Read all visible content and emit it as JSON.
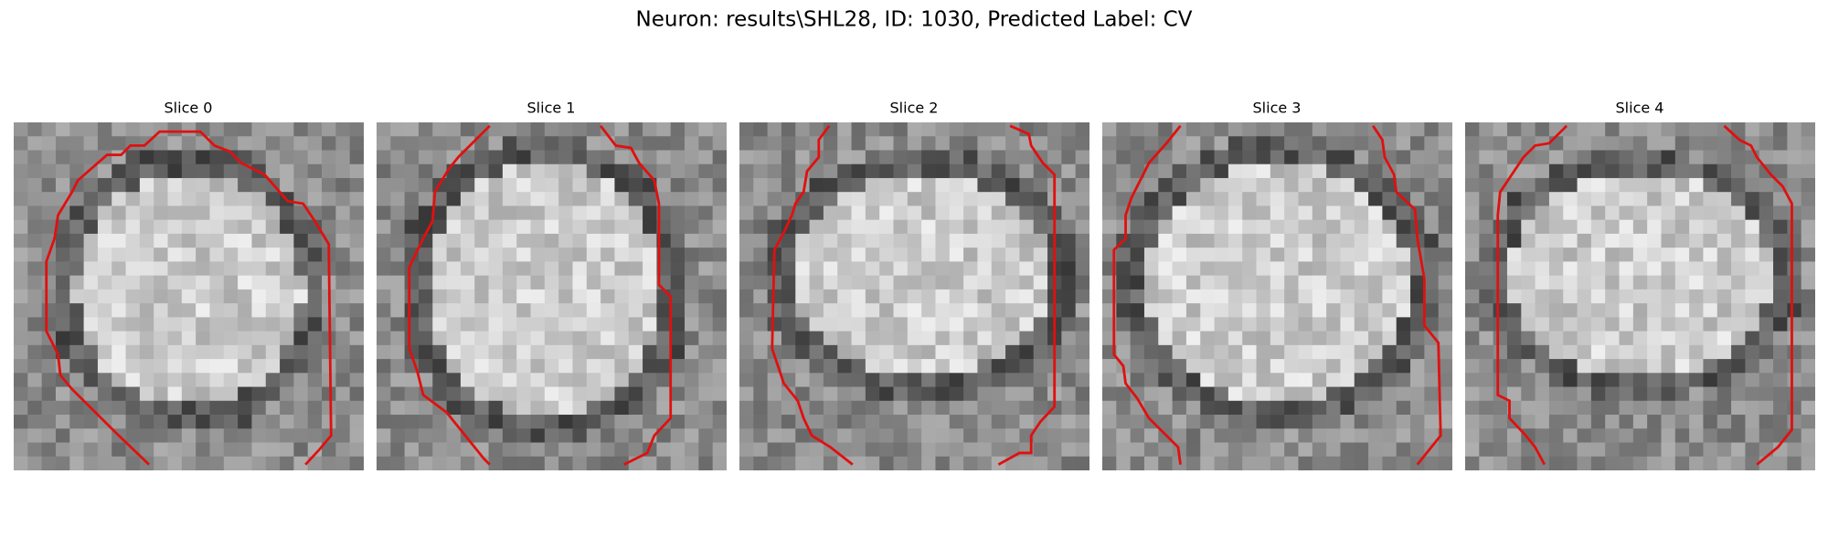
{
  "title": "Neuron: results\\SHL28, ID: 1030, Predicted Label: CV",
  "panels": [
    {
      "title": "Slice 0"
    },
    {
      "title": "Slice 1"
    },
    {
      "title": "Slice 2"
    },
    {
      "title": "Slice 3"
    },
    {
      "title": "Slice 4"
    }
  ]
}
